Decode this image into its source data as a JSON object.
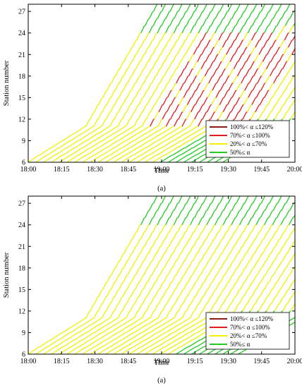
{
  "legend": {
    "entries": [
      {
        "label": "100%< α ≤120%",
        "color": "#8b1a1a"
      },
      {
        "label": "70%< α ≤100%",
        "color": "#e31a1c"
      },
      {
        "label": "20%< α ≤70%",
        "color": "#f0f000"
      },
      {
        "label": "50%≤ α",
        "color": "#22cc22"
      }
    ]
  },
  "chart_data": [
    {
      "type": "line",
      "subplot": "top",
      "caption": "(a)",
      "xlabel": "Time",
      "ylabel": "Station number",
      "xlim": [
        "18:00",
        "20:00"
      ],
      "ylim": [
        6,
        28
      ],
      "xticks": [
        "18:00",
        "18:15",
        "18:30",
        "18:45",
        "19:00",
        "19:15",
        "19:30",
        "19:45",
        "20:00"
      ],
      "yticks": [
        6,
        9,
        12,
        15,
        18,
        21,
        24,
        27
      ],
      "grid": false,
      "legend_position": "bottom-right",
      "trains": 26,
      "first_departure": "18:00",
      "headway_min": 3.5,
      "trip_duration_min": 58,
      "congested_segment": {
        "from_station": 11,
        "to_station": 24,
        "train_range": [
          8,
          20
        ],
        "level": "70%< α ≤100%"
      },
      "series": [
        {
          "name": "100%< α ≤120%",
          "color": "#8b1a1a"
        },
        {
          "name": "70%< α ≤100%",
          "color": "#e31a1c"
        },
        {
          "name": "20%< α ≤70%",
          "color": "#f0f000"
        },
        {
          "name": "50%≤ α",
          "color": "#22cc22"
        }
      ]
    },
    {
      "type": "line",
      "subplot": "bottom",
      "caption": "(a)",
      "xlabel": "Time",
      "ylabel": "Station number",
      "xlim": [
        "18:00",
        "20:00"
      ],
      "ylim": [
        6,
        28
      ],
      "xticks": [
        "18:00",
        "18:15",
        "18:30",
        "18:45",
        "19:00",
        "19:15",
        "19:30",
        "19:45",
        "20:00"
      ],
      "yticks": [
        6,
        9,
        12,
        15,
        18,
        21,
        24,
        27
      ],
      "grid": false,
      "legend_position": "bottom-right",
      "trains": 28,
      "first_departure": "18:00",
      "headway_min": 3.5,
      "trip_duration_min": 58,
      "congested_segment": null,
      "series": [
        {
          "name": "100%< α ≤120%",
          "color": "#8b1a1a"
        },
        {
          "name": "70%< α ≤100%",
          "color": "#e31a1c"
        },
        {
          "name": "20%< α ≤70%",
          "color": "#f0f000"
        },
        {
          "name": "50%≤ α",
          "color": "#22cc22"
        }
      ]
    }
  ]
}
